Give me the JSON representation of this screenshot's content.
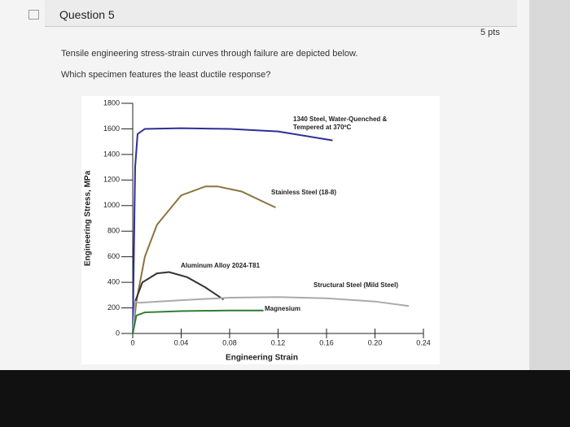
{
  "header": {
    "title": "Question 5",
    "points": "5 pts"
  },
  "question": {
    "lines": [
      "Tensile engineering stress-strain curves through failure are depicted below.",
      "Which specimen features the least ductile response?"
    ]
  },
  "chart_data": {
    "type": "line",
    "x_label": "Engineering Strain",
    "y_label": "Engineering Stress, MPa",
    "xlim": [
      0,
      0.24
    ],
    "ylim": [
      0,
      1800
    ],
    "xticks": [
      0,
      0.04,
      0.08,
      0.12,
      0.16,
      {
        "value": 0.2,
        "label": "0.20"
      },
      0.24
    ],
    "yticks": [
      0,
      200,
      400,
      600,
      800,
      1000,
      1200,
      1400,
      1600,
      1800
    ],
    "series": [
      {
        "name": "1340 Steel, Water-Quenched & Tempered at 370ºC",
        "color": "#2d2f96",
        "x": [
          0,
          0.002,
          0.004,
          0.01,
          0.04,
          0.08,
          0.12,
          0.165
        ],
        "values": [
          0,
          1300,
          1560,
          1600,
          1605,
          1600,
          1580,
          1510
        ]
      },
      {
        "name": "Stainless Steel (18-8)",
        "color": "#8a7440",
        "x": [
          0,
          0.003,
          0.01,
          0.02,
          0.04,
          0.06,
          0.07,
          0.09,
          0.11,
          0.118
        ],
        "values": [
          0,
          250,
          600,
          850,
          1080,
          1150,
          1150,
          1110,
          1020,
          985
        ]
      },
      {
        "name": "Aluminum Alloy 2024-T81",
        "color": "#333333",
        "x": [
          0,
          0.002,
          0.008,
          0.02,
          0.03,
          0.045,
          0.06,
          0.075
        ],
        "values": [
          0,
          250,
          400,
          470,
          480,
          440,
          360,
          265
        ]
      },
      {
        "name": "Structural Steel (Mild Steel)",
        "color": "#a9a9b0",
        "x": [
          0,
          0.002,
          0.005,
          0.04,
          0.08,
          0.12,
          0.16,
          0.2,
          0.228
        ],
        "values": [
          0,
          250,
          240,
          260,
          280,
          285,
          275,
          250,
          215
        ]
      },
      {
        "name": "Magnesium",
        "color": "#2e7d32",
        "x": [
          0,
          0.003,
          0.01,
          0.04,
          0.08,
          0.108
        ],
        "values": [
          0,
          140,
          165,
          175,
          180,
          180
        ]
      }
    ]
  }
}
